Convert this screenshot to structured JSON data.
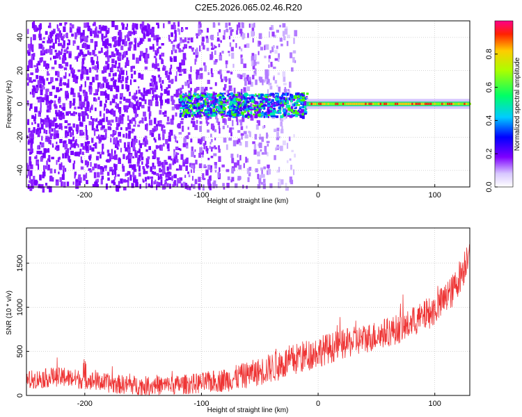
{
  "title": "C2E5.2026.065.02.46.R20",
  "chart_data": [
    {
      "type": "heatmap",
      "xlabel": "Height of straight line (km)",
      "ylabel": "Frequency (Hz)",
      "xlim": [
        -250,
        130
      ],
      "ylim": [
        -50,
        50
      ],
      "xticks": [
        -200,
        -100,
        0,
        100
      ],
      "yticks": [
        -40,
        -20,
        0,
        20,
        40
      ],
      "xtick_labels": [
        "-200",
        "-100",
        "0",
        "100"
      ],
      "ytick_labels": [
        "-40",
        "-20",
        "0",
        "20",
        "40"
      ],
      "grid": true,
      "colorbar": {
        "label": "Normalized spectral amplitude",
        "range": [
          0,
          1
        ],
        "ticks": [
          0.0,
          0.2,
          0.4,
          0.6,
          0.8
        ],
        "tick_labels": [
          "0.0",
          "0.2",
          "0.4",
          "0.6",
          "0.8"
        ],
        "colormap": "rainbow"
      }
    },
    {
      "type": "line",
      "xlabel": "Height of straight line (km)",
      "ylabel": "SNR (10 * v/v)",
      "xlim": [
        -250,
        130
      ],
      "ylim": [
        0,
        1900
      ],
      "xticks": [
        -200,
        -100,
        0,
        100
      ],
      "yticks": [
        0,
        500,
        1000,
        1500
      ],
      "xtick_labels": [
        "-200",
        "-100",
        "0",
        "100"
      ],
      "ytick_labels": [
        "0",
        "500",
        "1000",
        "1500"
      ],
      "grid": true,
      "series": [
        {
          "color": "#ee3333",
          "x": [
            -250,
            -225,
            -200,
            -175,
            -150,
            -125,
            -100,
            -75,
            -50,
            -25,
            0,
            25,
            50,
            75,
            100,
            115,
            125,
            130
          ],
          "y": [
            170,
            210,
            180,
            130,
            110,
            115,
            140,
            185,
            270,
            380,
            500,
            590,
            680,
            780,
            970,
            1180,
            1450,
            1720
          ],
          "noise": [
            110,
            110,
            110,
            110,
            110,
            110,
            120,
            140,
            160,
            190,
            180,
            170,
            170,
            170,
            180,
            190,
            200,
            200
          ]
        }
      ]
    }
  ]
}
